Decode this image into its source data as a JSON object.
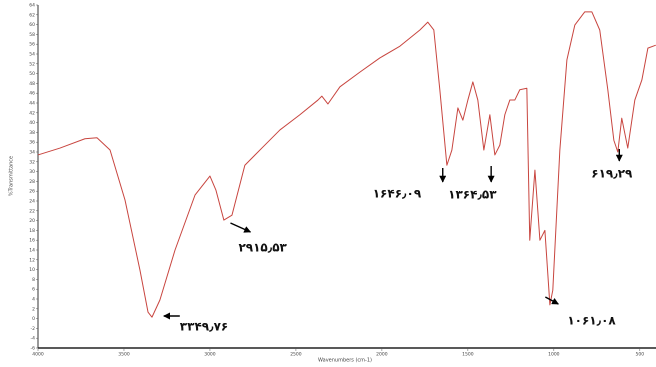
{
  "chart_data": {
    "type": "line",
    "x_label": "Wavenumbers (cm-1)",
    "y_label": "%Transmittance",
    "xlim": [
      4000,
      400
    ],
    "xticks": [
      4000,
      3500,
      3000,
      2500,
      2000,
      1500,
      1000,
      500
    ],
    "ylim": [
      -6,
      64
    ],
    "yticks": [
      -6,
      -4,
      -2,
      0,
      2,
      4,
      6,
      8,
      10,
      12,
      14,
      16,
      18,
      20,
      22,
      24,
      26,
      28,
      30,
      32,
      34,
      36,
      38,
      40,
      42,
      44,
      46,
      48,
      50,
      52,
      54,
      56,
      58,
      60,
      62,
      64
    ],
    "grid": false,
    "series": [
      {
        "color": "#c8453f",
        "x": [
          4000,
          3872,
          3727,
          3657,
          3581,
          3494,
          3407,
          3360,
          3337,
          3291,
          3203,
          3087,
          3000,
          2965,
          2919,
          2872,
          2797,
          2698,
          2593,
          2477,
          2372,
          2349,
          2314,
          2244,
          2128,
          2012,
          1895,
          1779,
          1733,
          1698,
          1663,
          1622,
          1593,
          1558,
          1529,
          1500,
          1471,
          1442,
          1407,
          1372,
          1343,
          1314,
          1285,
          1256,
          1227,
          1198,
          1157,
          1140,
          1110,
          1081,
          1052,
          1023,
          1006,
          965,
          924,
          878,
          820,
          779,
          733,
          686,
          651,
          628,
          605,
          570,
          529,
          488,
          453,
          407
        ],
        "values": [
          33.4,
          34.8,
          36.7,
          36.9,
          34.4,
          24.2,
          9.9,
          1.3,
          0.3,
          3.8,
          14.0,
          25.2,
          29.1,
          26.2,
          20.1,
          21.1,
          31.3,
          34.8,
          38.5,
          41.6,
          44.6,
          45.4,
          43.8,
          47.3,
          50.3,
          53.2,
          55.6,
          58.9,
          60.5,
          58.9,
          46.7,
          31.3,
          34.4,
          43.0,
          40.5,
          44.6,
          48.3,
          44.6,
          34.4,
          41.6,
          33.4,
          35.4,
          41.6,
          44.6,
          44.6,
          46.7,
          47.0,
          16.0,
          30.3,
          16.0,
          18.0,
          2.8,
          5.8,
          34.4,
          52.8,
          59.9,
          62.6,
          62.6,
          58.9,
          46.7,
          36.4,
          34.0,
          40.9,
          34.8,
          44.6,
          48.7,
          55.2,
          55.8
        ]
      }
    ],
    "annotations": [
      {
        "text": "۳۳۴۹٫۷۶",
        "x": 3349.76
      },
      {
        "text": "۲۹۱۵٫۵۳",
        "x": 2915.53
      },
      {
        "text": "۱۶۴۶٫۰۹",
        "x": 1646.09
      },
      {
        "text": "۱۳۶۴٫۵۳",
        "x": 1364.53
      },
      {
        "text": "۱۰۶۱٫۰۸",
        "x": 1061.08
      },
      {
        "text": "۶۱۹٫۲۹",
        "x": 619.29
      }
    ]
  }
}
